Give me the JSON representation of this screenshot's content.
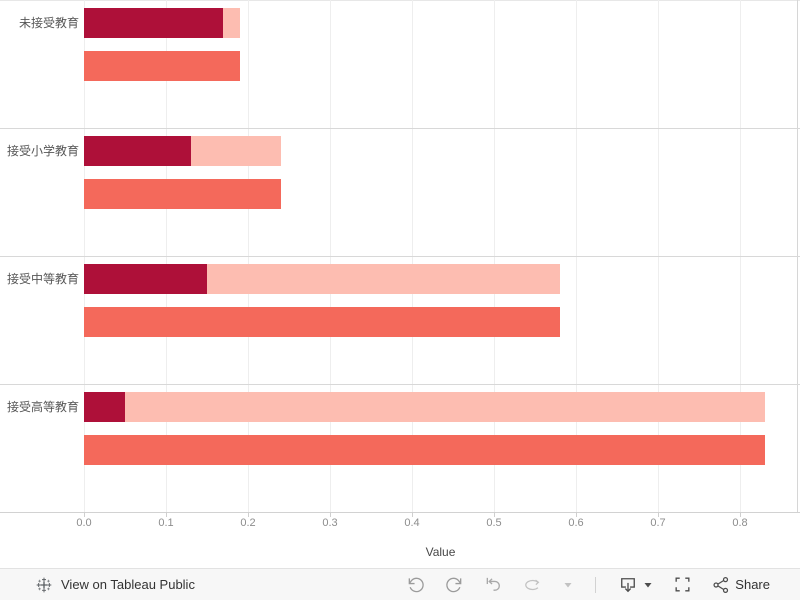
{
  "chart_data": {
    "type": "bar",
    "orientation": "horizontal",
    "categories": [
      "未接受教育",
      "接受小学教育",
      "接受中等教育",
      "接受高等教育"
    ],
    "series": [
      {
        "name": "stacked-segment-dark-red",
        "color": "#AE1039",
        "values": [
          0.17,
          0.13,
          0.15,
          0.05
        ]
      },
      {
        "name": "stacked-segment-light-pink",
        "color": "#FDBDB1",
        "values": [
          0.02,
          0.11,
          0.43,
          0.78
        ]
      },
      {
        "name": "total-bar-salmon",
        "color": "#F4695B",
        "values": [
          0.19,
          0.24,
          0.58,
          0.83
        ]
      }
    ],
    "xlabel": "Value",
    "xticks": [
      "0.0",
      "0.1",
      "0.2",
      "0.3",
      "0.4",
      "0.5",
      "0.6",
      "0.7",
      "0.8"
    ],
    "xlim": [
      0,
      0.87
    ],
    "grid": true,
    "legend": "none"
  },
  "toolbar": {
    "view_on_tableau": "View on Tableau Public",
    "share_label": "Share",
    "icons": [
      "tableau-logo",
      "undo",
      "redo",
      "revert",
      "refresh",
      "caret-down",
      "download",
      "download-caret",
      "fullscreen",
      "share"
    ]
  },
  "colors": {
    "bar_dark_red": "#AE1039",
    "bar_light_pink": "#FDBDB1",
    "bar_salmon": "#F4695B",
    "gridline": "#EEEEEE",
    "pane_border": "#D6D6D6",
    "row_separator": "#D8D8D8",
    "tick_label": "#8D8D8D",
    "category_label": "#565656",
    "axis_title": "#484848",
    "toolbar_bg": "#F7F7F7",
    "toolbar_icon_active": "#9B9B9B",
    "toolbar_icon_disabled": "#C2C2C2",
    "toolbar_icon_dark": "#4D4D4D"
  }
}
